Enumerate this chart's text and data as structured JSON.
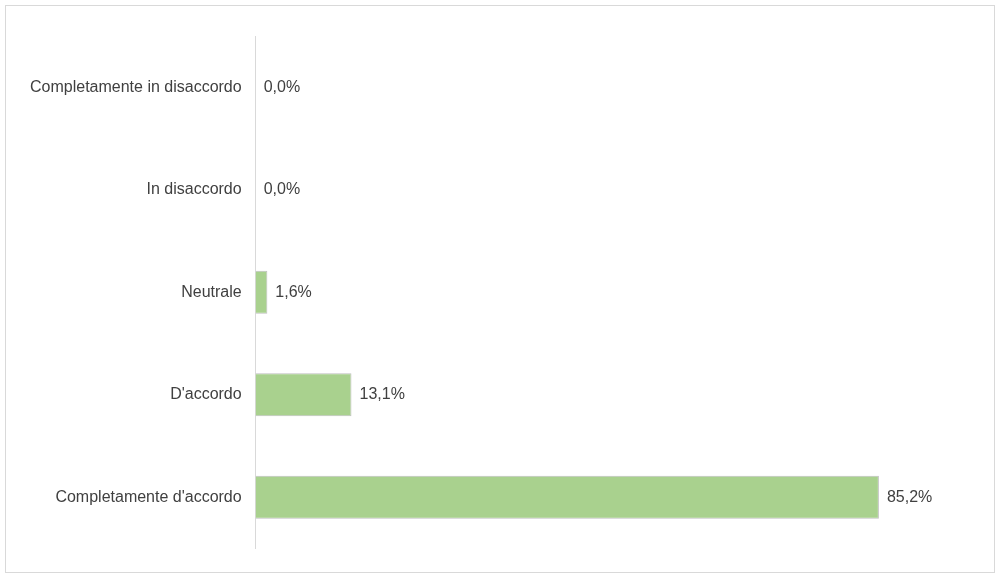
{
  "chart_data": {
    "type": "bar",
    "orientation": "horizontal",
    "categories": [
      "Completamente in disaccordo",
      "In disaccordo",
      "Neutrale",
      "D'accordo",
      "Completamente d'accordo"
    ],
    "values": [
      0,
      0,
      1.6,
      13.1,
      85.2
    ],
    "color": "#a9d18e",
    "value_labels": [
      "0,0%",
      "0,0%",
      "1,6%",
      "13,1%",
      "85,2%"
    ],
    "tick_labels": "y",
    "legend": false
  }
}
